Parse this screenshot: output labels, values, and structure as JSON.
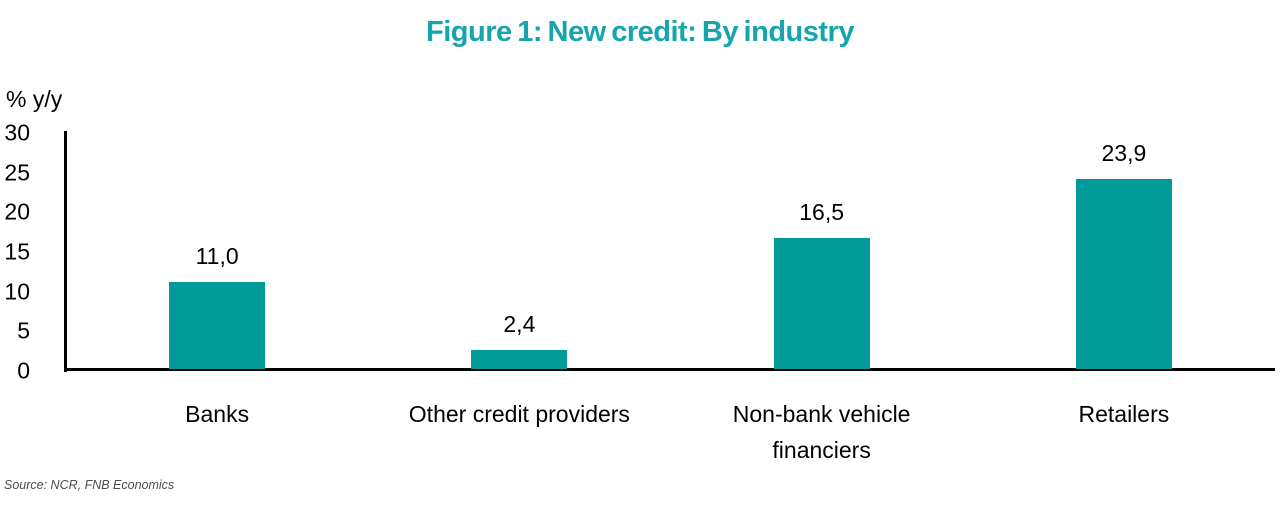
{
  "title": "Figure 1: New credit: By industry",
  "colors": {
    "title": "#16a5ae",
    "bar": "#009a98",
    "axis": "#000000",
    "source_text": "#4d4d4d"
  },
  "chart_data": {
    "type": "bar",
    "title": "Figure 1: New credit: By industry",
    "categories": [
      "Banks",
      "Other credit providers",
      "Non-bank vehicle financiers",
      "Retailers"
    ],
    "values": [
      11.0,
      2.4,
      16.5,
      23.9
    ],
    "data_labels": [
      "11,0",
      "2,4",
      "16,5",
      "23,9"
    ],
    "xlabel": "",
    "ylabel": "% y/y",
    "ylim": [
      0,
      30
    ],
    "yticks": [
      0,
      5,
      10,
      15,
      20,
      25,
      30
    ],
    "grid": false,
    "legend_position": "none",
    "decimal_separator": ","
  },
  "source": "Source: NCR, FNB Economics"
}
